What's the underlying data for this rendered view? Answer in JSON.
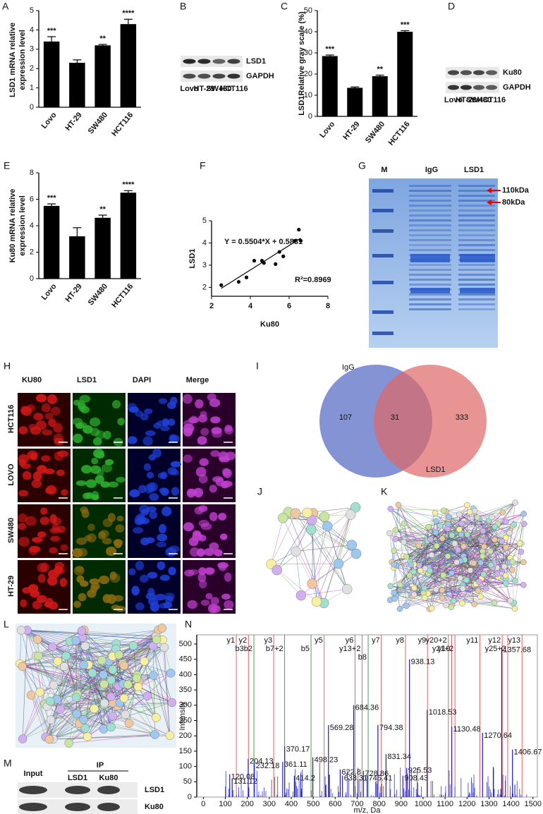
{
  "chart_data": [
    {
      "type": "bar",
      "panel": "A",
      "y_label": [
        "LSD1 mRNA relative",
        "expression level"
      ],
      "categories": [
        "Lovo",
        "HT-29",
        "SW480",
        "HCT116"
      ],
      "values": [
        3.4,
        2.3,
        3.2,
        4.3
      ],
      "errors": [
        0.25,
        0.15,
        0.05,
        0.25
      ],
      "annotations": [
        "***",
        null,
        "**",
        "****"
      ],
      "color": "#000000",
      "ylim": [
        0,
        5
      ],
      "yticks": [
        0,
        1,
        2,
        3,
        4,
        5
      ]
    },
    {
      "type": "bar",
      "panel": "C",
      "y_label": [
        "LSD1Relative gray scale (%)"
      ],
      "categories": [
        "Lovo",
        "HT-29",
        "SW480",
        "HCT116"
      ],
      "values": [
        28.5,
        13.5,
        19,
        40
      ],
      "errors": [
        0.5,
        0.4,
        0.5,
        0.5
      ],
      "annotations": [
        "***",
        null,
        "**",
        "***"
      ],
      "color": "#000000",
      "ylim": [
        0,
        50
      ],
      "yticks": [
        0,
        10,
        20,
        30,
        40,
        50
      ]
    },
    {
      "type": "bar",
      "panel": "E",
      "y_label": [
        "Ku80 mRNA relative",
        "expression level"
      ],
      "categories": [
        "Lovo",
        "HT-29",
        "SW480",
        "HCT116"
      ],
      "values": [
        5.5,
        3.2,
        4.6,
        6.5
      ],
      "errors": [
        0.15,
        0.65,
        0.2,
        0.15
      ],
      "annotations": [
        "***",
        null,
        "**",
        "****"
      ],
      "color": "#000000",
      "ylim": [
        0,
        8
      ],
      "yticks": [
        0,
        2,
        4,
        6,
        8
      ]
    },
    {
      "type": "scatter",
      "panel": "F",
      "x_label": "Ku80",
      "y_label": "LSD1",
      "equation": "Y = 0.5504*X + 0.5831",
      "r2_label": "R²=0.8969",
      "fit": {
        "slope": 0.5504,
        "intercept": 0.5831
      },
      "x": [
        2.5,
        3.4,
        3.8,
        4.2,
        4.6,
        4.7,
        5.3,
        5.5,
        5.7,
        6.3,
        6.5,
        6.6
      ],
      "values": [
        2.1,
        2.25,
        2.45,
        3.2,
        3.2,
        3.1,
        3.05,
        3.6,
        3.4,
        4.1,
        4.6,
        4.1
      ],
      "color": "#000000",
      "xlim": [
        2,
        8
      ],
      "xticks": [
        2,
        4,
        6,
        8
      ],
      "ylim": [
        1.6,
        5
      ],
      "yticks": [
        2,
        3,
        4,
        5
      ]
    },
    {
      "type": "venn",
      "panel": "I",
      "sets": [
        "IgG",
        "LSD1"
      ],
      "values": [
        107,
        31,
        333
      ],
      "colors": [
        "#6f80cc",
        "#e06666"
      ]
    },
    {
      "type": "spectrum",
      "panel": "N",
      "x_label": "m/z, Da",
      "y_label": "Intensity",
      "xlim": [
        -30,
        1520
      ],
      "xticks": [
        0,
        100,
        200,
        300,
        400,
        500,
        600,
        700,
        800,
        900,
        1000,
        1100,
        1200,
        1300,
        1400,
        1500
      ],
      "ylim": [
        0,
        530
      ],
      "yticks": [
        0,
        50,
        100,
        150,
        200,
        250,
        300,
        350,
        400,
        450,
        500
      ],
      "color": "#1a1acc",
      "peaks": {
        "x": [
          120.08,
          131.12,
          204.13,
          232.18,
          361.11,
          370.17,
          414.2,
          498.23,
          569.28,
          622.8,
          633.31,
          684.36,
          728.86,
          745.41,
          794.38,
          831.34,
          908.43,
          925.53,
          938.13,
          1018.53,
          1130.48,
          1270.64,
          1357.68,
          1406.67
        ],
        "values": [
          75,
          60,
          125,
          110,
          115,
          165,
          70,
          130,
          235,
          90,
          70,
          300,
          85,
          70,
          235,
          140,
          70,
          95,
          450,
          285,
          230,
          210,
          490,
          155
        ]
      },
      "ions": [
        {
          "label": "y1",
          "x": 150,
          "color": "#e53935"
        },
        {
          "label": "y2",
          "x": 205,
          "color": "#e53935"
        },
        {
          "label": "b3b2",
          "x": 230,
          "color": "#2e7d32"
        },
        {
          "label": "y3",
          "x": 320,
          "color": "#e53935"
        },
        {
          "label": "b7+2",
          "x": 370,
          "color": "#2e7d32"
        },
        {
          "label": "b5",
          "x": 490,
          "color": "#2e7d32"
        },
        {
          "label": "y5",
          "x": 550,
          "color": "#e53935"
        },
        {
          "label": "y6",
          "x": 690,
          "color": "#e53935"
        },
        {
          "label": "y13+2",
          "x": 722,
          "color": "#e53935"
        },
        {
          "label": "b8",
          "x": 750,
          "color": "#2e7d32"
        },
        {
          "label": "y7",
          "x": 810,
          "color": "#e53935"
        },
        {
          "label": "y8",
          "x": 920,
          "color": "#e53935"
        },
        {
          "label": "y9",
          "x": 1020,
          "color": "#e53935"
        },
        {
          "label": "y20+2",
          "x": 1115,
          "color": "#e53935"
        },
        {
          "label": "y10",
          "x": 1130,
          "color": "#e53935"
        },
        {
          "label": "y21+2",
          "x": 1145,
          "color": "#e53935"
        },
        {
          "label": "y11",
          "x": 1258,
          "color": "#e53935"
        },
        {
          "label": "y12",
          "x": 1360,
          "color": "#e53935"
        },
        {
          "label": "y25+2",
          "x": 1385,
          "color": "#e53935"
        },
        {
          "label": "y13",
          "x": 1450,
          "color": "#e53935"
        }
      ]
    }
  ],
  "panels": {
    "B": {
      "letter": "B",
      "bands": [
        "LSD1",
        "GAPDH"
      ],
      "lanes": [
        "Lovo",
        "HT-29",
        "SW480",
        "HCT116"
      ]
    },
    "D": {
      "letter": "D",
      "bands": [
        "Ku80",
        "GAPDH"
      ],
      "lanes": [
        "Lovo",
        "HT-29",
        "SW480",
        "HCT116"
      ]
    },
    "G": {
      "letter": "G",
      "lanes": [
        "M",
        "IgG",
        "LSD1"
      ],
      "markers": [
        "110kDa",
        "80kDa"
      ]
    },
    "H": {
      "letter": "H",
      "columns": [
        "KU80",
        "LSD1",
        "DAPI",
        "Merge"
      ],
      "rows": [
        "HCT116",
        "LOVO",
        "SW480",
        "HT-29"
      ]
    },
    "J": {
      "letter": "J"
    },
    "K": {
      "letter": "K"
    },
    "L": {
      "letter": "L"
    },
    "M": {
      "letter": "M",
      "input": "Input",
      "ip": "IP",
      "ip_lanes": [
        "LSD1",
        "Ku80"
      ],
      "bands": [
        "LSD1",
        "Ku80"
      ]
    }
  }
}
